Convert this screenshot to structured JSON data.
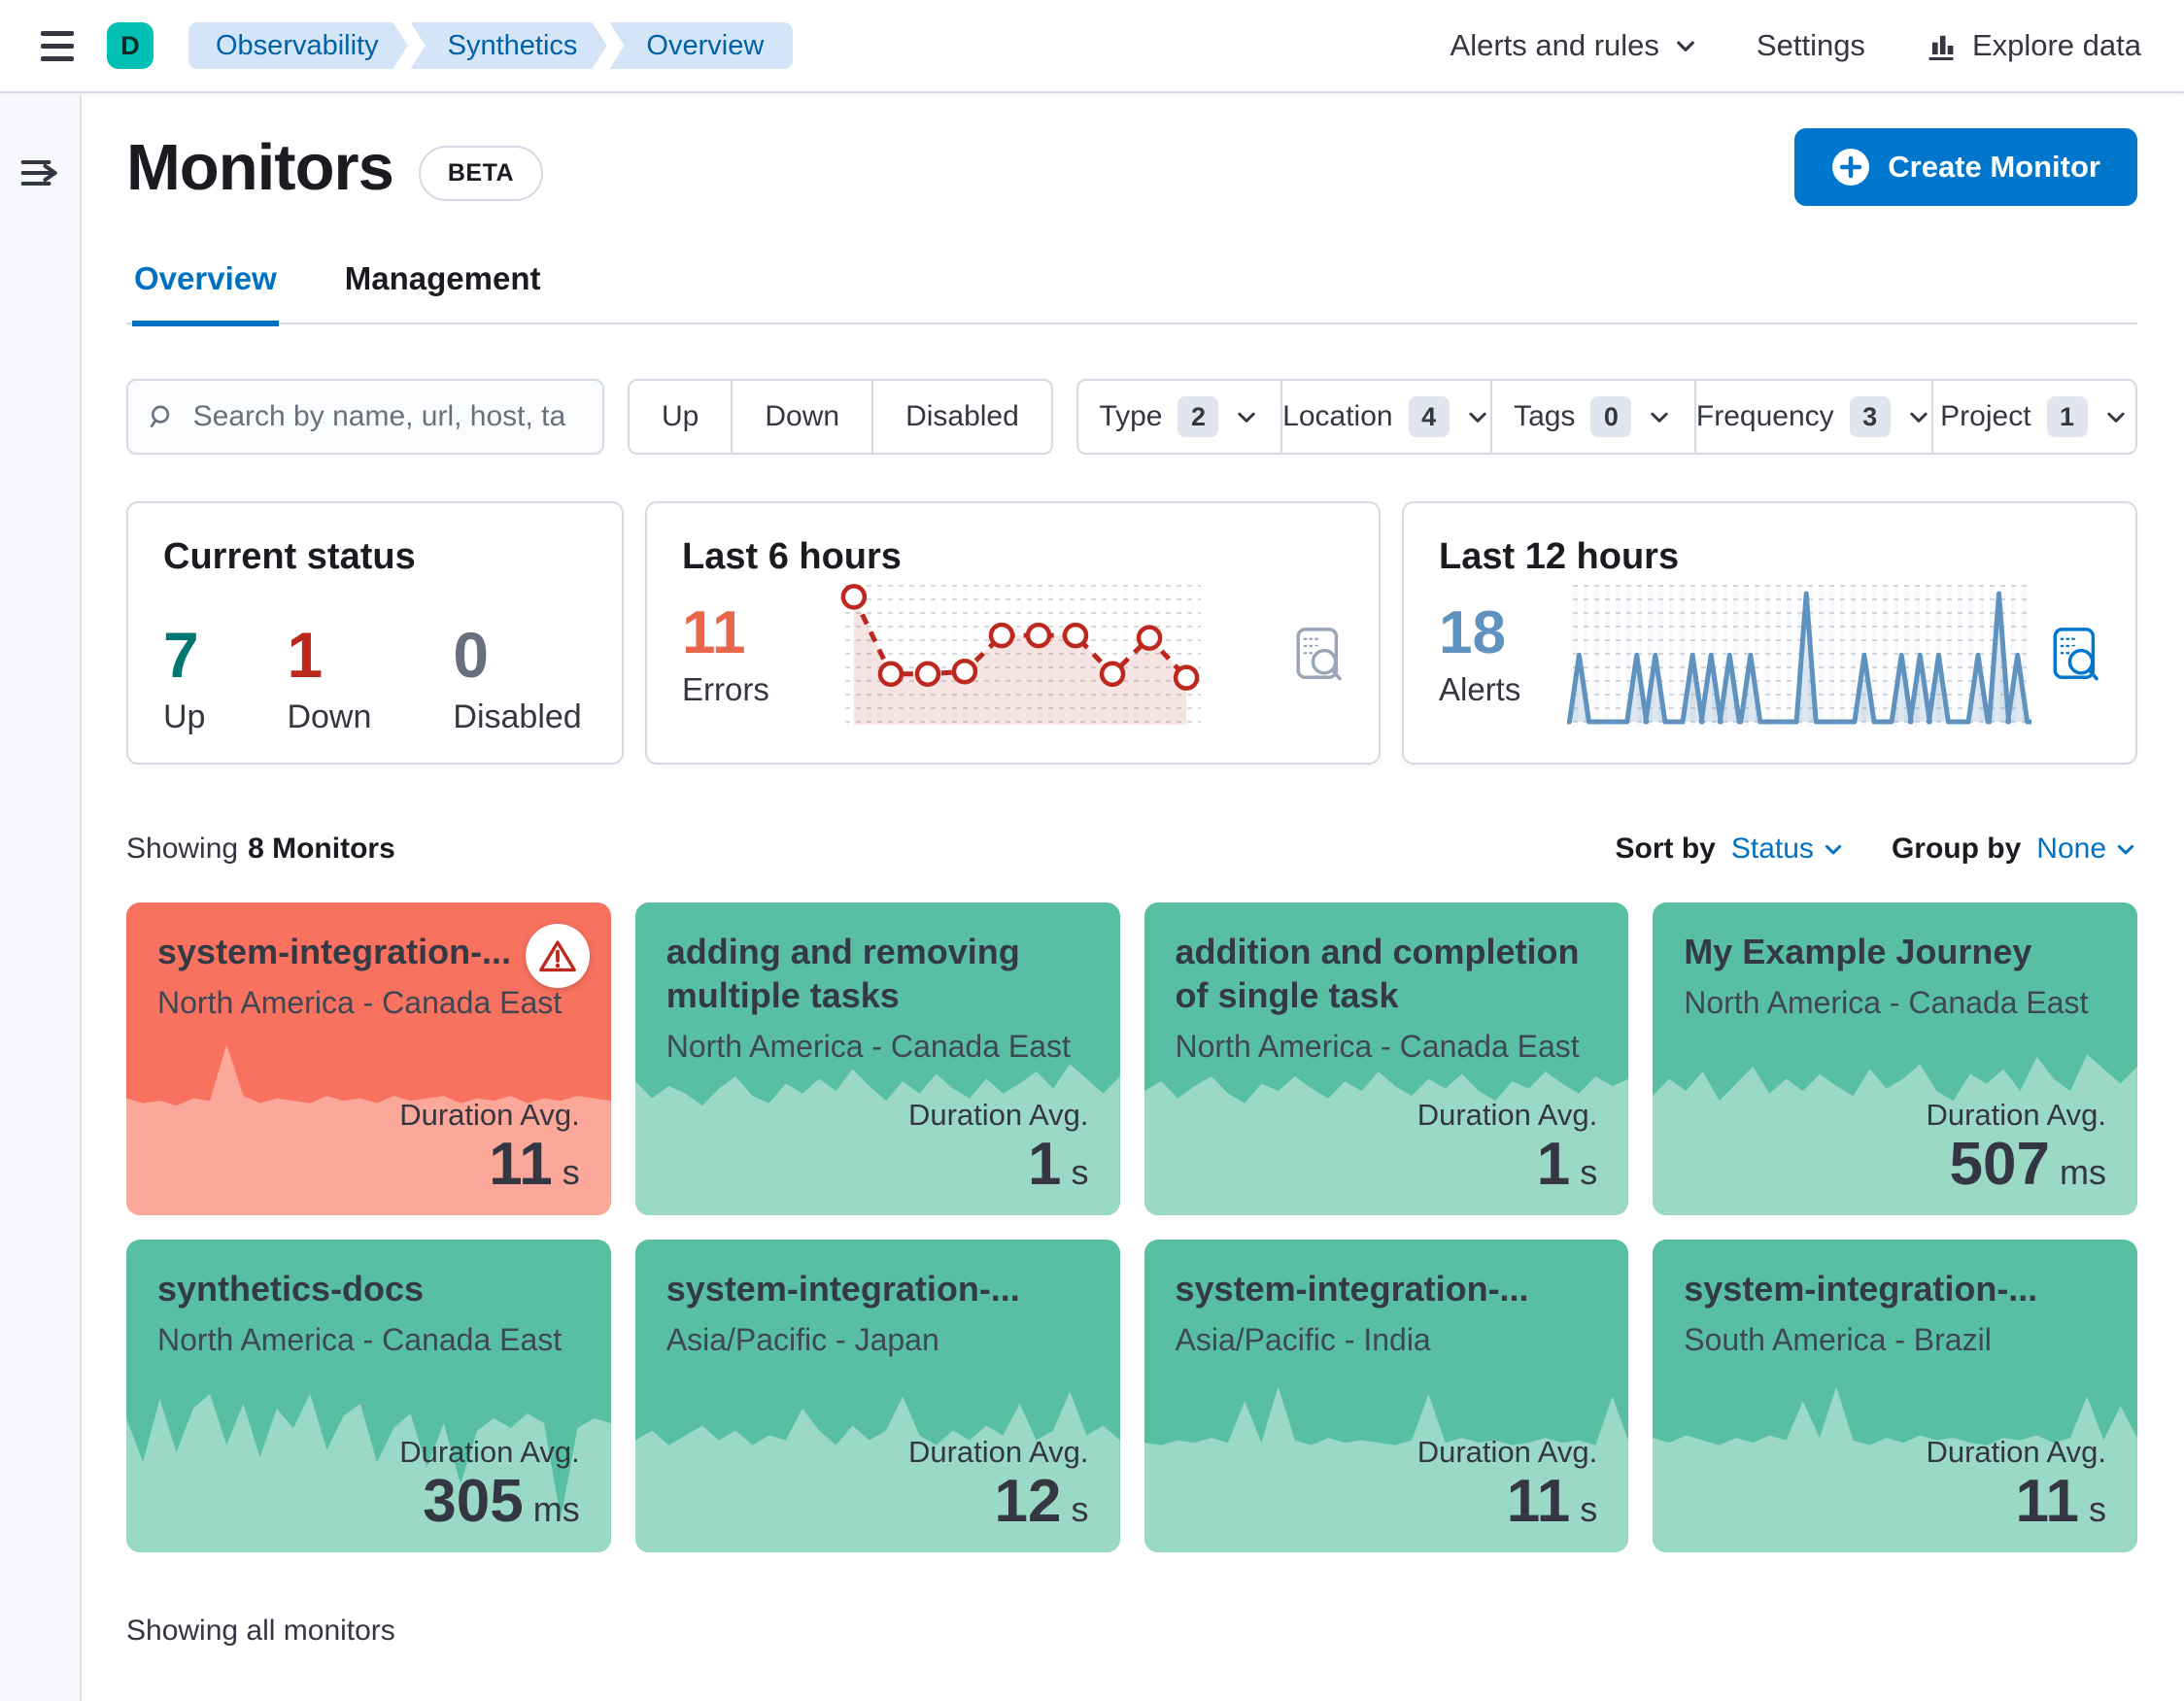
{
  "colors": {
    "accent_blue": "#0077CC",
    "link_blue": "#0071C2",
    "text_dark": "#343741",
    "heading": "#1A1C21",
    "muted": "#69707D",
    "border": "#D3DAE6",
    "success": "#007871",
    "danger": "#BD271E",
    "errors_accent": "#E7664C",
    "alerts_accent": "#6092C0",
    "up_card_bg": "#59BFA3",
    "up_card_fill": "#9AD9C6",
    "down_card_bg": "#F9725F",
    "down_card_fill": "#FBA89A",
    "breadcrumb_bg": "#D3E5F6",
    "breadcrumb_text": "#0061A6",
    "space_avatar_bg": "#00BFB3"
  },
  "header": {
    "space_initial": "D",
    "breadcrumbs": [
      {
        "label": "Observability"
      },
      {
        "label": "Synthetics"
      },
      {
        "label": "Overview"
      }
    ],
    "nav": {
      "alerts_and_rules": "Alerts and rules",
      "settings": "Settings",
      "explore_data": "Explore data"
    }
  },
  "page": {
    "title": "Monitors",
    "beta_badge": "BETA",
    "create_monitor": "Create Monitor",
    "tabs": [
      {
        "label": "Overview"
      },
      {
        "label": "Management"
      }
    ]
  },
  "filters": {
    "search_placeholder": "Search by name, url, host, ta",
    "status_buttons": [
      {
        "label": "Up"
      },
      {
        "label": "Down"
      },
      {
        "label": "Disabled"
      }
    ],
    "dropdowns": [
      {
        "label": "Type",
        "count": "2"
      },
      {
        "label": "Location",
        "count": "4"
      },
      {
        "label": "Tags",
        "count": "0"
      },
      {
        "label": "Frequency",
        "count": "3"
      },
      {
        "label": "Project",
        "count": "1"
      }
    ]
  },
  "stats": {
    "current_status": {
      "title": "Current status",
      "items": [
        {
          "value": "7",
          "label": "Up"
        },
        {
          "value": "1",
          "label": "Down"
        },
        {
          "value": "0",
          "label": "Disabled"
        }
      ]
    },
    "errors": {
      "title": "Last 6 hours",
      "value": "11",
      "label": "Errors"
    },
    "alerts": {
      "title": "Last 12 hours",
      "value": "18",
      "label": "Alerts"
    }
  },
  "list": {
    "showing_label": "Showing",
    "showing_count": "8 Monitors",
    "sort_label": "Sort by",
    "sort_value": "Status",
    "group_label": "Group by",
    "group_value": "None",
    "footer": "Showing all monitors"
  },
  "monitors": [
    {
      "name": "system-integration-...",
      "location": "North America - Canada East",
      "duration_label": "Duration Avg.",
      "duration_value": "11",
      "duration_unit": "s",
      "status": "down",
      "sparkline": [
        48,
        46,
        47,
        45,
        48,
        47,
        70,
        49,
        46,
        48,
        47,
        46,
        49,
        47,
        48,
        46,
        49,
        47,
        48,
        49,
        46,
        48,
        47,
        49,
        46,
        48,
        47,
        49,
        48,
        47
      ]
    },
    {
      "name": "adding and removing multiple tasks",
      "location": "North America - Canada East",
      "duration_label": "Duration Avg.",
      "duration_value": "1",
      "duration_unit": "s",
      "status": "up",
      "sparkline": [
        55,
        48,
        53,
        50,
        45,
        52,
        57,
        49,
        46,
        54,
        50,
        56,
        51,
        60,
        53,
        47,
        55,
        50,
        58,
        52,
        48,
        56,
        50,
        54,
        59,
        52,
        62,
        56,
        50,
        57
      ]
    },
    {
      "name": "addition and completion of single task",
      "location": "North America - Canada East",
      "duration_label": "Duration Avg.",
      "duration_value": "1",
      "duration_unit": "s",
      "status": "up",
      "sparkline": [
        51,
        55,
        48,
        53,
        57,
        50,
        46,
        54,
        51,
        57,
        52,
        48,
        55,
        51,
        59,
        53,
        49,
        56,
        52,
        58,
        51,
        47,
        55,
        52,
        59,
        54,
        50,
        57,
        53,
        56
      ]
    },
    {
      "name": "My Example Journey",
      "location": "North America - Canada East",
      "duration_label": "Duration Avg.",
      "duration_value": "507",
      "duration_unit": "ms",
      "status": "up",
      "sparkline": [
        49,
        56,
        51,
        59,
        47,
        54,
        61,
        50,
        56,
        51,
        58,
        53,
        49,
        60,
        52,
        56,
        62,
        51,
        47,
        58,
        54,
        60,
        51,
        65,
        56,
        51,
        66,
        60,
        54,
        61
      ]
    },
    {
      "name": "synthetics-docs",
      "location": "North America - Canada East",
      "duration_label": "Duration Avg.",
      "duration_value": "305",
      "duration_unit": "ms",
      "status": "up",
      "sparkline": [
        55,
        37,
        63,
        41,
        59,
        65,
        44,
        61,
        39,
        59,
        51,
        65,
        42,
        56,
        61,
        37,
        51,
        57,
        35,
        53,
        28,
        50,
        55,
        51,
        57,
        53,
        14,
        51,
        55,
        53
      ]
    },
    {
      "name": "system-integration-...",
      "location": "Asia/Pacific - Japan",
      "duration_label": "Duration Avg.",
      "duration_value": "12",
      "duration_unit": "s",
      "status": "up",
      "sparkline": [
        46,
        50,
        44,
        48,
        52,
        46,
        50,
        44,
        48,
        46,
        59,
        50,
        44,
        52,
        46,
        50,
        64,
        48,
        44,
        50,
        46,
        52,
        48,
        61,
        46,
        50,
        66,
        48,
        52,
        46
      ]
    },
    {
      "name": "system-integration-...",
      "location": "Asia/Pacific - India",
      "duration_label": "Duration Avg.",
      "duration_value": "11",
      "duration_unit": "s",
      "status": "up",
      "sparkline": [
        45,
        44,
        46,
        45,
        47,
        45,
        62,
        45,
        68,
        46,
        44,
        47,
        45,
        46,
        45,
        44,
        46,
        65,
        45,
        47,
        45,
        46,
        44,
        45,
        47,
        45,
        46,
        44,
        64,
        45
      ]
    },
    {
      "name": "system-integration-...",
      "location": "South America - Brazil",
      "duration_label": "Duration Avg.",
      "duration_value": "11",
      "duration_unit": "s",
      "status": "up",
      "sparkline": [
        47,
        45,
        48,
        46,
        44,
        47,
        45,
        48,
        46,
        62,
        47,
        68,
        46,
        44,
        47,
        45,
        48,
        46,
        47,
        45,
        44,
        47,
        46,
        48,
        45,
        47,
        64,
        46,
        60,
        47
      ]
    }
  ],
  "chart_data": [
    {
      "id": "errors-last-6-hours",
      "type": "line",
      "panel_title": "Last 6 hours",
      "metric_label": "Errors",
      "total": 11,
      "color": "#BD271E",
      "area_fill": "rgba(189,39,30,0.12)",
      "line_style": "dashed with hollow circle markers",
      "x_axis": "time over last 6 hours (unlabeled)",
      "y_axis": "error count (unlabeled)",
      "values_pct_of_height": [
        95,
        33,
        33,
        35,
        64,
        64,
        64,
        33,
        62,
        30
      ]
    },
    {
      "id": "alerts-last-12-hours",
      "type": "line",
      "panel_title": "Last 12 hours",
      "metric_label": "Alerts",
      "total": 18,
      "color": "#6092C0",
      "style": "sharp narrow spikes on a flat baseline",
      "x_axis": "time over last 12 hours (unlabeled)",
      "peaks": [
        {
          "x_pct": 2.6,
          "h_pct": 52
        },
        {
          "x_pct": 15,
          "h_pct": 52
        },
        {
          "x_pct": 19,
          "h_pct": 52
        },
        {
          "x_pct": 27,
          "h_pct": 52
        },
        {
          "x_pct": 31,
          "h_pct": 52
        },
        {
          "x_pct": 35,
          "h_pct": 52
        },
        {
          "x_pct": 39.5,
          "h_pct": 52
        },
        {
          "x_pct": 51.5,
          "h_pct": 100
        },
        {
          "x_pct": 64,
          "h_pct": 52
        },
        {
          "x_pct": 72,
          "h_pct": 52
        },
        {
          "x_pct": 76,
          "h_pct": 52
        },
        {
          "x_pct": 80,
          "h_pct": 52
        },
        {
          "x_pct": 88.5,
          "h_pct": 52
        },
        {
          "x_pct": 93,
          "h_pct": 100
        },
        {
          "x_pct": 97,
          "h_pct": 52
        }
      ]
    },
    {
      "id": "monitor-duration-sparklines",
      "type": "area",
      "note": "decorative duration sparklines on each monitor card; values are % of sparkline height, see monitors[].sparkline"
    }
  ]
}
